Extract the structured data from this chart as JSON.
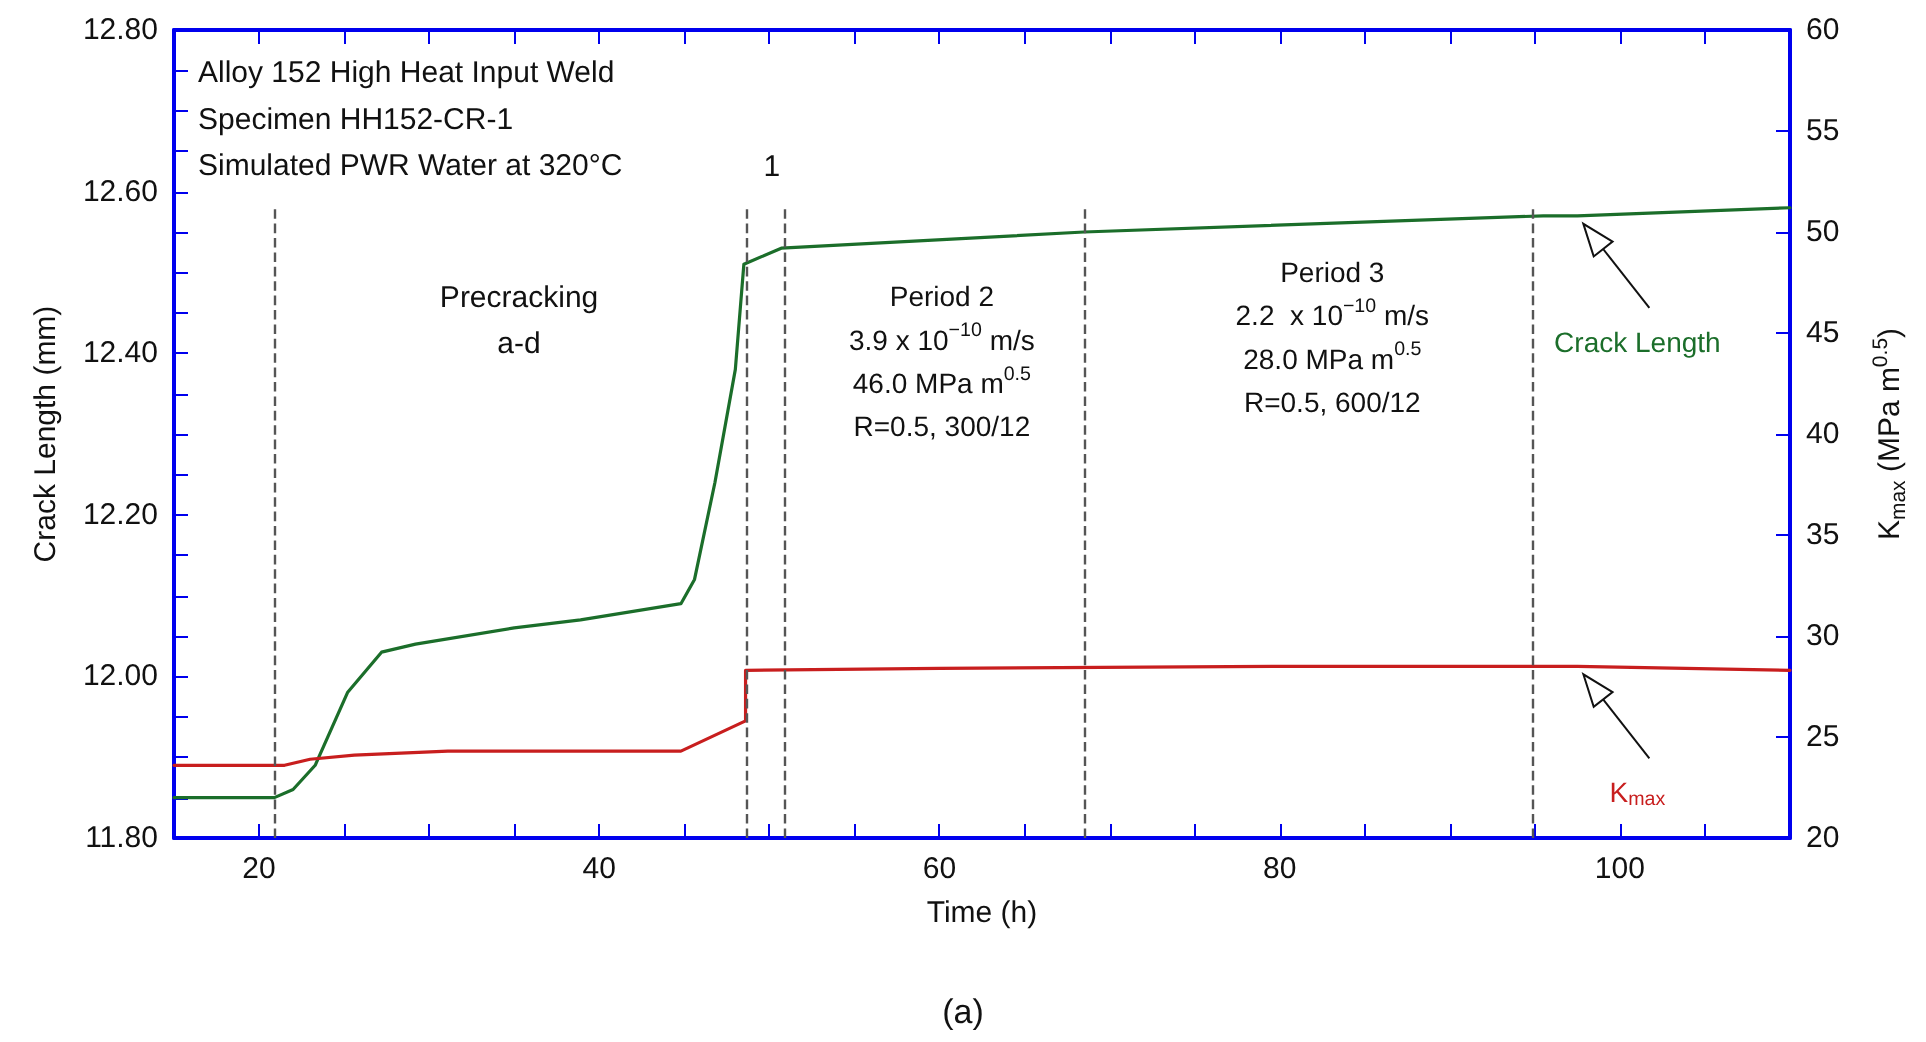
{
  "chart_data": {
    "type": "line",
    "title": "Alloy 152 High Heat Input Weld",
    "subtitle": "Specimen HH152-CR-1\nSimulated PWR Water at 320°C",
    "xlabel": "Time (h)",
    "ylabel": "Crack Length (mm)",
    "y2label": "K$_{max}$ (MPa m$^{0.5}$)",
    "series": [
      {
        "name": "Crack Length",
        "color": "#1b6e2a",
        "x": [
          15,
          20.9,
          22,
          23.3,
          25.2,
          27.2,
          29.2,
          35,
          38.9,
          44.8,
          45.6,
          46.8,
          48,
          48.5,
          50.7,
          68.5,
          95.5,
          97.5,
          110
        ],
        "values": [
          11.85,
          11.85,
          11.86,
          11.89,
          11.98,
          12.03,
          12.04,
          12.06,
          12.07,
          12.09,
          12.12,
          12.24,
          12.38,
          12.51,
          12.53,
          12.55,
          12.57,
          12.57,
          12.58
        ]
      },
      {
        "name": "K$_{max}$",
        "color": "#c81e1e",
        "axis": "y2",
        "x": [
          15,
          21.5,
          23,
          25.6,
          31.1,
          44.8,
          48.6,
          48.6,
          60,
          80,
          97.5,
          110
        ],
        "values": [
          23.6,
          23.6,
          23.9,
          24.1,
          24.3,
          24.3,
          25.8,
          28.3,
          28.4,
          28.5,
          28.5,
          28.3
        ]
      }
    ],
    "annotations": [
      "Precracking\na-d",
      "1",
      "Period 2\n3.9 x 10$^{−10}$ m/s\n46.0 MPa m$^{0.5}$\nR=0.5, 300/12",
      "Period 3\n2.2  x 10$^{−10}$ m/s\n28.0 MPa m$^{0.5}$\nR=0.5, 600/12",
      "(a)"
    ],
    "ref_lines": [
      {
        "axis": "x",
        "value": 20.9,
        "label": null,
        "color": "#555555",
        "line_style": "dashed"
      },
      {
        "axis": "x",
        "value": 48.6,
        "label": null,
        "color": "#555555",
        "line_style": "dashed"
      },
      {
        "axis": "x",
        "value": 50.9,
        "label": null,
        "color": "#555555",
        "line_style": "dashed"
      },
      {
        "axis": "x",
        "value": 68.5,
        "label": null,
        "color": "#555555",
        "line_style": "dashed"
      },
      {
        "axis": "x",
        "value": 94.9,
        "label": null,
        "color": "#555555",
        "line_style": "dashed"
      }
    ],
    "xlim": [
      15,
      110
    ],
    "xticks": [
      {
        "value": 15,
        "label": null
      },
      20,
      {
        "value": 25,
        "label": null
      },
      {
        "value": 30,
        "label": null
      },
      {
        "value": 35,
        "label": null
      },
      40,
      {
        "value": 45,
        "label": null
      },
      {
        "value": 50,
        "label": null
      },
      {
        "value": 55,
        "label": null
      },
      60,
      {
        "value": 65,
        "label": null
      },
      {
        "value": 70,
        "label": null
      },
      {
        "value": 75,
        "label": null
      },
      80,
      {
        "value": 85,
        "label": null
      },
      {
        "value": 90,
        "label": null
      },
      {
        "value": 95,
        "label": null
      },
      100,
      {
        "value": 105,
        "label": null
      }
    ],
    "ylim": [
      11.8,
      12.8
    ],
    "yticks": [
      {
        "value": 11.8,
        "label": "11.80"
      },
      {
        "value": 11.85,
        "label": null
      },
      {
        "value": 11.9,
        "label": null
      },
      {
        "value": 11.95,
        "label": null
      },
      {
        "value": 12.0,
        "label": "12.00"
      },
      {
        "value": 12.05,
        "label": null
      },
      {
        "value": 12.1,
        "label": null
      },
      {
        "value": 12.15,
        "label": null
      },
      {
        "value": 12.2,
        "label": "12.20"
      },
      {
        "value": 12.25,
        "label": null
      },
      {
        "value": 12.3,
        "label": null
      },
      {
        "value": 12.35,
        "label": null
      },
      {
        "value": 12.4,
        "label": "12.40"
      },
      {
        "value": 12.45,
        "label": null
      },
      {
        "value": 12.5,
        "label": null
      },
      {
        "value": 12.55,
        "label": null
      },
      {
        "value": 12.6,
        "label": "12.60"
      },
      {
        "value": 12.65,
        "label": null
      },
      {
        "value": 12.7,
        "label": null
      },
      {
        "value": 12.75,
        "label": null
      },
      {
        "value": 12.8,
        "label": "12.80"
      }
    ],
    "y2lim": [
      20,
      60
    ],
    "y2ticks": [
      20,
      25,
      30,
      35,
      40,
      45,
      50,
      55,
      60
    ],
    "grid": false,
    "legend": false,
    "marker": "none",
    "line_style": "solid"
  }
}
